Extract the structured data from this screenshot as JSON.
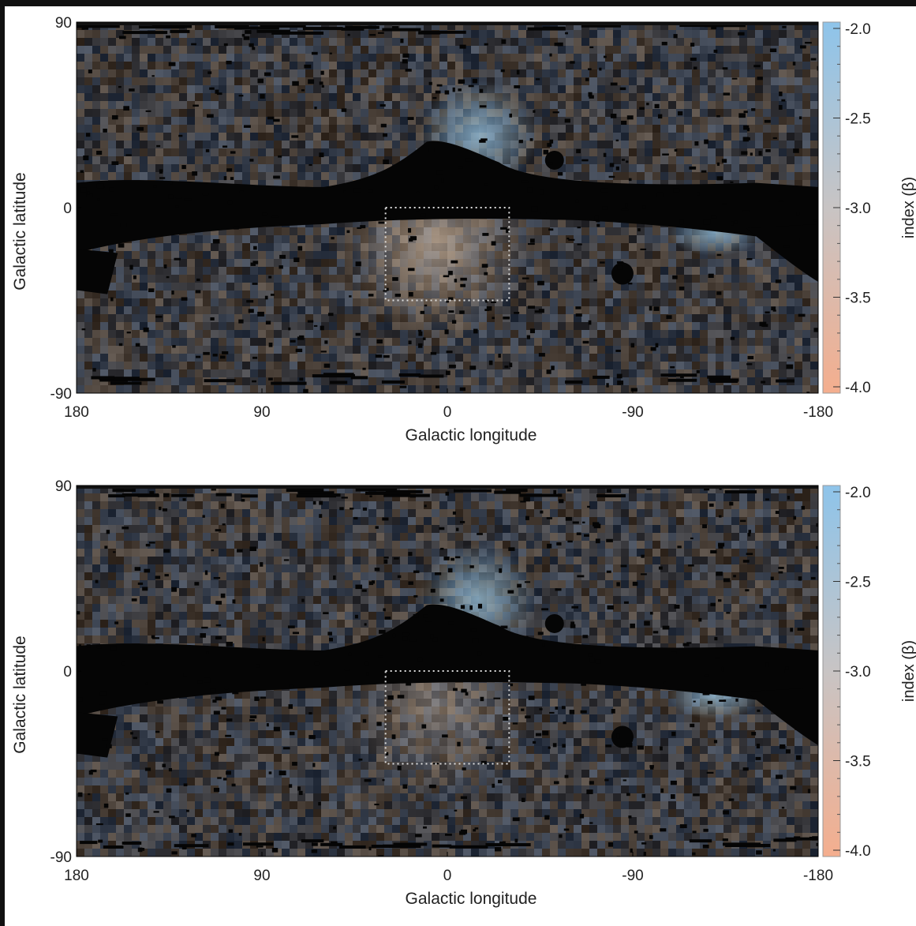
{
  "chart_data": [
    {
      "type": "heatmap",
      "panel": "top",
      "xlabel": "Galactic longitude",
      "ylabel": "Galactic latitude",
      "xlim": [
        180,
        -180
      ],
      "ylim": [
        -90,
        90
      ],
      "xticks": [
        "180",
        "90",
        "0",
        "-90",
        "-180"
      ],
      "xtick_values": [
        180,
        90,
        0,
        -90,
        -180
      ],
      "yticks": [
        "90",
        "0",
        "-90"
      ],
      "ytick_values": [
        90,
        0,
        -90
      ],
      "colorbar": {
        "label": "index (β)",
        "range": [
          -4.0,
          -2.0
        ],
        "ticks": [
          "-2.0",
          "-2.5",
          "-3.0",
          "-3.5",
          "-4.0"
        ],
        "tick_values": [
          -2.0,
          -2.5,
          -3.0,
          -3.5,
          -4.0
        ],
        "colors": {
          "top": "#8ec4ea",
          "middle": "#c8c4c4",
          "bottom": "#f4ae8e"
        }
      },
      "region_box": {
        "lon": [
          30,
          -30
        ],
        "lat": [
          0,
          -45
        ]
      }
    },
    {
      "type": "heatmap",
      "panel": "bottom",
      "xlabel": "Galactic longitude",
      "ylabel": "Galactic latitude",
      "xlim": [
        180,
        -180
      ],
      "ylim": [
        -90,
        90
      ],
      "xticks": [
        "180",
        "90",
        "0",
        "-90",
        "-180"
      ],
      "xtick_values": [
        180,
        90,
        0,
        -90,
        -180
      ],
      "yticks": [
        "90",
        "0",
        "-90"
      ],
      "ytick_values": [
        90,
        0,
        -90
      ],
      "colorbar": {
        "label": "index (β)",
        "range": [
          -4.0,
          -2.0
        ],
        "ticks": [
          "-2.0",
          "-2.5",
          "-3.0",
          "-3.5",
          "-4.0"
        ],
        "tick_values": [
          -2.0,
          -2.5,
          -3.0,
          -3.5,
          -4.0
        ],
        "colors": {
          "top": "#8ec4ea",
          "middle": "#c8c4c4",
          "bottom": "#f4ae8e"
        }
      },
      "region_box": {
        "lon": [
          30,
          -30
        ],
        "lat": [
          0,
          -45
        ]
      }
    }
  ]
}
